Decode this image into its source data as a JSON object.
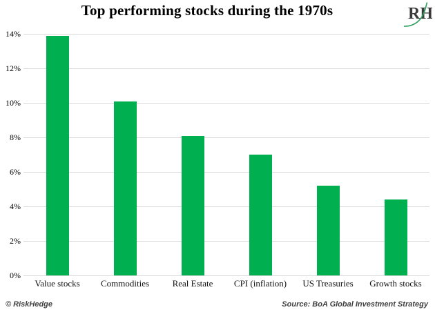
{
  "title": "Top performing stocks during the 1970s",
  "logo": {
    "text": "RH"
  },
  "footer": {
    "left": "© RiskHedge",
    "right": "Source: BoA Global Investment Strategy"
  },
  "colors": {
    "bar": "#00B050",
    "gridline": "#D9D9D9",
    "title_text": "#000000",
    "axis_text": "#000000",
    "footer_text": "#3F3F3F",
    "logo_text": "#3B3B3B",
    "logo_swoosh": "#2FA05E"
  },
  "chart_data": {
    "type": "bar",
    "title": "Top performing stocks during the 1970s",
    "categories": [
      "Value stocks",
      "Commodities",
      "Real Estate",
      "CPI (inflation)",
      "US Treasuries",
      "Growth stocks"
    ],
    "values": [
      13.9,
      10.1,
      8.1,
      7.0,
      5.2,
      4.4
    ],
    "xlabel": "",
    "ylabel": "",
    "ylim": [
      0,
      14
    ],
    "ytick_step": 2,
    "yticks": [
      "0%",
      "2%",
      "4%",
      "6%",
      "8%",
      "10%",
      "12%",
      "14%"
    ],
    "grid": true,
    "legend": false,
    "bar_color": "#00B050"
  }
}
